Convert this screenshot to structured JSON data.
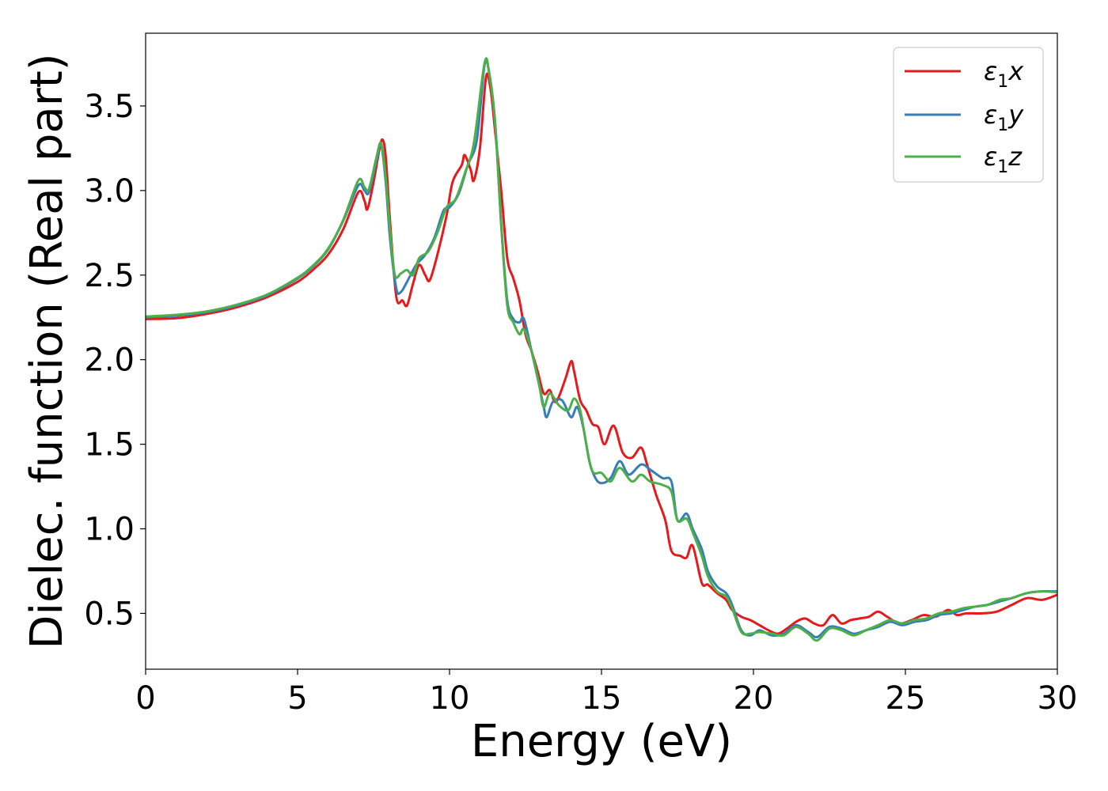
{
  "chart_data": {
    "type": "line",
    "xlabel": "Energy (eV)",
    "ylabel": "Dielec. function (Real part)",
    "xlim": [
      0,
      30
    ],
    "ylim": [
      0.17,
      3.93
    ],
    "xticks": [
      "0",
      "5",
      "10",
      "15",
      "20",
      "25",
      "30"
    ],
    "yticks": [
      "0.5",
      "1.0",
      "1.5",
      "2.0",
      "2.5",
      "3.0",
      "3.5"
    ],
    "xtick_values": [
      0,
      5,
      10,
      15,
      20,
      25,
      30
    ],
    "ytick_values": [
      0.5,
      1.0,
      1.5,
      2.0,
      2.5,
      3.0,
      3.5
    ],
    "grid": false,
    "legend_position": "top-right",
    "series": [
      {
        "name": "ε₁x",
        "legend_base": "ε",
        "legend_sub": "1",
        "legend_suffix": "x",
        "color": "#e41a1c",
        "points": [
          [
            0,
            2.24
          ],
          [
            1,
            2.245
          ],
          [
            2,
            2.27
          ],
          [
            3,
            2.31
          ],
          [
            4,
            2.37
          ],
          [
            5,
            2.46
          ],
          [
            5.5,
            2.53
          ],
          [
            6,
            2.62
          ],
          [
            6.5,
            2.77
          ],
          [
            7,
            2.99
          ],
          [
            7.2,
            2.94
          ],
          [
            7.3,
            2.89
          ],
          [
            7.5,
            3.05
          ],
          [
            7.7,
            3.25
          ],
          [
            7.8,
            3.3
          ],
          [
            7.9,
            3.2
          ],
          [
            8.05,
            2.8
          ],
          [
            8.25,
            2.37
          ],
          [
            8.45,
            2.35
          ],
          [
            8.6,
            2.32
          ],
          [
            8.8,
            2.45
          ],
          [
            9.0,
            2.56
          ],
          [
            9.2,
            2.5
          ],
          [
            9.35,
            2.47
          ],
          [
            9.6,
            2.62
          ],
          [
            9.9,
            2.85
          ],
          [
            10.1,
            3.05
          ],
          [
            10.4,
            3.15
          ],
          [
            10.5,
            3.21
          ],
          [
            10.7,
            3.12
          ],
          [
            10.8,
            3.06
          ],
          [
            11.0,
            3.25
          ],
          [
            11.2,
            3.67
          ],
          [
            11.35,
            3.6
          ],
          [
            11.5,
            3.35
          ],
          [
            11.7,
            3.0
          ],
          [
            11.9,
            2.6
          ],
          [
            12.1,
            2.48
          ],
          [
            12.3,
            2.35
          ],
          [
            12.5,
            2.15
          ],
          [
            12.7,
            2.05
          ],
          [
            12.9,
            1.93
          ],
          [
            13.1,
            1.8
          ],
          [
            13.3,
            1.82
          ],
          [
            13.5,
            1.75
          ],
          [
            13.8,
            1.88
          ],
          [
            14.0,
            1.99
          ],
          [
            14.1,
            1.93
          ],
          [
            14.3,
            1.76
          ],
          [
            14.5,
            1.7
          ],
          [
            14.7,
            1.62
          ],
          [
            14.9,
            1.6
          ],
          [
            15.1,
            1.5
          ],
          [
            15.4,
            1.61
          ],
          [
            15.7,
            1.45
          ],
          [
            16.0,
            1.42
          ],
          [
            16.3,
            1.48
          ],
          [
            16.5,
            1.38
          ],
          [
            16.8,
            1.2
          ],
          [
            17.1,
            1.05
          ],
          [
            17.3,
            0.87
          ],
          [
            17.6,
            0.84
          ],
          [
            17.8,
            0.83
          ],
          [
            18.0,
            0.9
          ],
          [
            18.3,
            0.68
          ],
          [
            18.5,
            0.67
          ],
          [
            18.8,
            0.62
          ],
          [
            19.1,
            0.58
          ],
          [
            19.3,
            0.52
          ],
          [
            19.6,
            0.48
          ],
          [
            19.9,
            0.46
          ],
          [
            20.2,
            0.43
          ],
          [
            20.5,
            0.4
          ],
          [
            20.8,
            0.38
          ],
          [
            21.1,
            0.41
          ],
          [
            21.4,
            0.45
          ],
          [
            21.7,
            0.47
          ],
          [
            22.0,
            0.44
          ],
          [
            22.3,
            0.43
          ],
          [
            22.6,
            0.49
          ],
          [
            22.9,
            0.44
          ],
          [
            23.2,
            0.46
          ],
          [
            23.5,
            0.47
          ],
          [
            23.8,
            0.48
          ],
          [
            24.1,
            0.51
          ],
          [
            24.4,
            0.48
          ],
          [
            24.8,
            0.44
          ],
          [
            25.2,
            0.46
          ],
          [
            25.6,
            0.49
          ],
          [
            26.0,
            0.48
          ],
          [
            26.4,
            0.52
          ],
          [
            26.7,
            0.49
          ],
          [
            27.0,
            0.5
          ],
          [
            27.5,
            0.5
          ],
          [
            28.0,
            0.51
          ],
          [
            28.5,
            0.55
          ],
          [
            29.0,
            0.59
          ],
          [
            29.5,
            0.58
          ],
          [
            30.0,
            0.61
          ]
        ]
      },
      {
        "name": "ε₁y",
        "legend_base": "ε",
        "legend_sub": "1",
        "legend_suffix": "y",
        "color": "#377eb8",
        "points": [
          [
            0,
            2.25
          ],
          [
            1,
            2.26
          ],
          [
            2,
            2.28
          ],
          [
            3,
            2.32
          ],
          [
            4,
            2.38
          ],
          [
            5,
            2.48
          ],
          [
            5.5,
            2.55
          ],
          [
            6,
            2.65
          ],
          [
            6.5,
            2.82
          ],
          [
            7,
            3.03
          ],
          [
            7.2,
            3.0
          ],
          [
            7.35,
            2.99
          ],
          [
            7.6,
            3.18
          ],
          [
            7.75,
            3.27
          ],
          [
            7.9,
            3.05
          ],
          [
            8.05,
            2.7
          ],
          [
            8.25,
            2.42
          ],
          [
            8.4,
            2.4
          ],
          [
            8.6,
            2.46
          ],
          [
            8.9,
            2.56
          ],
          [
            9.2,
            2.62
          ],
          [
            9.5,
            2.72
          ],
          [
            9.8,
            2.88
          ],
          [
            10.0,
            2.9
          ],
          [
            10.3,
            2.98
          ],
          [
            10.6,
            3.15
          ],
          [
            10.9,
            3.3
          ],
          [
            11.15,
            3.74
          ],
          [
            11.3,
            3.7
          ],
          [
            11.5,
            3.4
          ],
          [
            11.7,
            2.8
          ],
          [
            11.9,
            2.35
          ],
          [
            12.1,
            2.24
          ],
          [
            12.3,
            2.22
          ],
          [
            12.45,
            2.24
          ],
          [
            12.7,
            2.05
          ],
          [
            12.95,
            1.85
          ],
          [
            13.1,
            1.72
          ],
          [
            13.2,
            1.66
          ],
          [
            13.4,
            1.75
          ],
          [
            13.7,
            1.76
          ],
          [
            14.0,
            1.66
          ],
          [
            14.2,
            1.72
          ],
          [
            14.4,
            1.6
          ],
          [
            14.6,
            1.4
          ],
          [
            14.8,
            1.3
          ],
          [
            15.0,
            1.27
          ],
          [
            15.3,
            1.3
          ],
          [
            15.6,
            1.4
          ],
          [
            15.9,
            1.32
          ],
          [
            16.3,
            1.38
          ],
          [
            16.6,
            1.35
          ],
          [
            17.0,
            1.3
          ],
          [
            17.3,
            1.28
          ],
          [
            17.5,
            1.05
          ],
          [
            17.8,
            1.09
          ],
          [
            18.0,
            1.0
          ],
          [
            18.3,
            0.88
          ],
          [
            18.5,
            0.75
          ],
          [
            18.8,
            0.66
          ],
          [
            19.1,
            0.62
          ],
          [
            19.3,
            0.55
          ],
          [
            19.6,
            0.4
          ],
          [
            19.9,
            0.37
          ],
          [
            20.2,
            0.4
          ],
          [
            20.6,
            0.37
          ],
          [
            21.0,
            0.38
          ],
          [
            21.4,
            0.43
          ],
          [
            21.8,
            0.39
          ],
          [
            22.1,
            0.36
          ],
          [
            22.5,
            0.42
          ],
          [
            22.9,
            0.41
          ],
          [
            23.3,
            0.38
          ],
          [
            23.7,
            0.4
          ],
          [
            24.1,
            0.42
          ],
          [
            24.5,
            0.45
          ],
          [
            24.9,
            0.43
          ],
          [
            25.3,
            0.45
          ],
          [
            25.7,
            0.46
          ],
          [
            26.1,
            0.49
          ],
          [
            26.5,
            0.5
          ],
          [
            26.9,
            0.52
          ],
          [
            27.3,
            0.54
          ],
          [
            27.7,
            0.55
          ],
          [
            28.1,
            0.57
          ],
          [
            28.5,
            0.59
          ],
          [
            29.0,
            0.62
          ],
          [
            29.5,
            0.63
          ],
          [
            30.0,
            0.63
          ]
        ]
      },
      {
        "name": "ε₁z",
        "legend_base": "ε",
        "legend_sub": "1",
        "legend_suffix": "z",
        "color": "#4daf4a",
        "points": [
          [
            0,
            2.255
          ],
          [
            1,
            2.265
          ],
          [
            2,
            2.285
          ],
          [
            3,
            2.325
          ],
          [
            4,
            2.385
          ],
          [
            5,
            2.485
          ],
          [
            5.5,
            2.555
          ],
          [
            6,
            2.655
          ],
          [
            6.5,
            2.825
          ],
          [
            7,
            3.06
          ],
          [
            7.2,
            3.02
          ],
          [
            7.35,
            3.01
          ],
          [
            7.6,
            3.2
          ],
          [
            7.75,
            3.28
          ],
          [
            7.9,
            3.08
          ],
          [
            8.05,
            2.75
          ],
          [
            8.2,
            2.5
          ],
          [
            8.4,
            2.51
          ],
          [
            8.6,
            2.53
          ],
          [
            8.8,
            2.5
          ],
          [
            9.0,
            2.6
          ],
          [
            9.3,
            2.64
          ],
          [
            9.6,
            2.75
          ],
          [
            9.9,
            2.9
          ],
          [
            10.2,
            2.95
          ],
          [
            10.5,
            3.1
          ],
          [
            10.8,
            3.28
          ],
          [
            11.15,
            3.75
          ],
          [
            11.3,
            3.7
          ],
          [
            11.5,
            3.4
          ],
          [
            11.7,
            2.8
          ],
          [
            11.9,
            2.32
          ],
          [
            12.1,
            2.22
          ],
          [
            12.3,
            2.15
          ],
          [
            12.45,
            2.18
          ],
          [
            12.7,
            2.05
          ],
          [
            12.95,
            1.85
          ],
          [
            13.1,
            1.72
          ],
          [
            13.3,
            1.8
          ],
          [
            13.6,
            1.73
          ],
          [
            13.9,
            1.7
          ],
          [
            14.1,
            1.77
          ],
          [
            14.3,
            1.7
          ],
          [
            14.5,
            1.5
          ],
          [
            14.7,
            1.34
          ],
          [
            15.0,
            1.33
          ],
          [
            15.3,
            1.28
          ],
          [
            15.6,
            1.36
          ],
          [
            16.0,
            1.28
          ],
          [
            16.3,
            1.32
          ],
          [
            16.6,
            1.28
          ],
          [
            17.0,
            1.26
          ],
          [
            17.3,
            1.22
          ],
          [
            17.5,
            1.05
          ],
          [
            17.8,
            1.06
          ],
          [
            18.0,
            0.98
          ],
          [
            18.3,
            0.84
          ],
          [
            18.5,
            0.72
          ],
          [
            18.8,
            0.63
          ],
          [
            19.1,
            0.6
          ],
          [
            19.3,
            0.53
          ],
          [
            19.6,
            0.39
          ],
          [
            19.9,
            0.38
          ],
          [
            20.2,
            0.39
          ],
          [
            20.6,
            0.38
          ],
          [
            21.0,
            0.37
          ],
          [
            21.4,
            0.42
          ],
          [
            21.8,
            0.38
          ],
          [
            22.1,
            0.34
          ],
          [
            22.5,
            0.41
          ],
          [
            22.9,
            0.4
          ],
          [
            23.3,
            0.37
          ],
          [
            23.7,
            0.4
          ],
          [
            24.1,
            0.43
          ],
          [
            24.5,
            0.46
          ],
          [
            24.9,
            0.44
          ],
          [
            25.3,
            0.46
          ],
          [
            25.7,
            0.47
          ],
          [
            26.1,
            0.5
          ],
          [
            26.5,
            0.51
          ],
          [
            26.9,
            0.53
          ],
          [
            27.3,
            0.54
          ],
          [
            27.7,
            0.55
          ],
          [
            28.1,
            0.58
          ],
          [
            28.5,
            0.59
          ],
          [
            29.0,
            0.62
          ],
          [
            29.5,
            0.63
          ],
          [
            30.0,
            0.625
          ]
        ]
      }
    ]
  }
}
